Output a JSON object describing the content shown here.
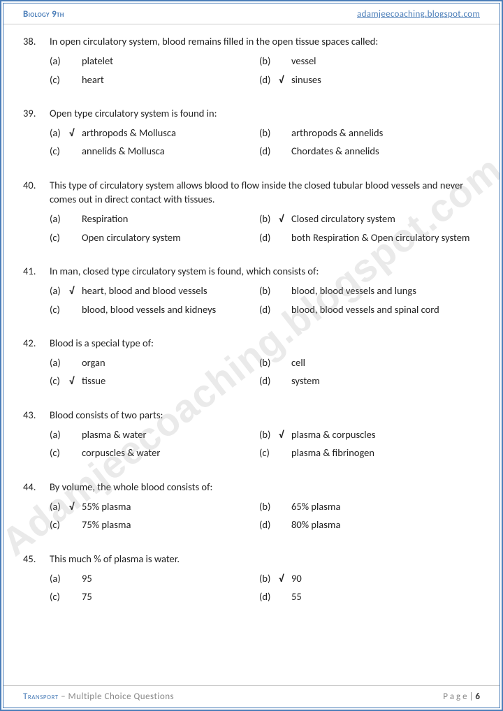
{
  "header": {
    "left": "Biology 9th",
    "right": "adamjeecoaching.blogspot.com"
  },
  "footer": {
    "title": "Transport",
    "subtitle": " – Multiple Choice Questions",
    "pageLabel": "P a g e  | ",
    "pageNum": "6"
  },
  "watermark": "Adamjeecoaching.blogspot.com",
  "colors": {
    "border": "#4a7db8",
    "text": "#222",
    "footerGray": "#888"
  },
  "questions": [
    {
      "num": "38.",
      "text": "In open circulatory system, blood remains filled in the open tissue spaces called:",
      "opts": [
        {
          "l": "(a)",
          "c": "",
          "t": "platelet"
        },
        {
          "l": "(b)",
          "c": "",
          "t": "vessel"
        },
        {
          "l": "(c)",
          "c": "",
          "t": "heart"
        },
        {
          "l": "(d)",
          "c": "√",
          "t": "sinuses"
        }
      ]
    },
    {
      "num": "39.",
      "text": "Open type circulatory system is found in:",
      "opts": [
        {
          "l": "(a)",
          "c": "√",
          "t": "arthropods & Mollusca"
        },
        {
          "l": "(b)",
          "c": "",
          "t": "arthropods & annelids"
        },
        {
          "l": "(c)",
          "c": "",
          "t": "annelids & Mollusca"
        },
        {
          "l": " (d)",
          "c": "",
          "t": "Chordates & annelids"
        }
      ]
    },
    {
      "num": "40.",
      "text": "This type of circulatory system allows blood to flow inside the closed tubular blood vessels and never comes out in direct contact with tissues.",
      "opts": [
        {
          "l": "(a)",
          "c": "",
          "t": "Respiration"
        },
        {
          "l": "(b)",
          "c": "√",
          "t": "Closed circulatory system"
        },
        {
          "l": "(c)",
          "c": "",
          "t": "Open circulatory system"
        },
        {
          "l": "(d)",
          "c": "",
          "t": "both Respiration & Open circulatory system"
        }
      ]
    },
    {
      "num": "41.",
      "text": "In man, closed type circulatory system is found, which consists of:",
      "opts": [
        {
          "l": "(a)",
          "c": "√",
          "t": "heart, blood and blood vessels"
        },
        {
          "l": "(b)",
          "c": "",
          "t": "blood, blood vessels and lungs"
        },
        {
          "l": "(c)",
          "c": "",
          "t": "blood, blood vessels and kidneys"
        },
        {
          "l": "(d)",
          "c": "",
          "t": "blood, blood vessels and spinal cord"
        }
      ]
    },
    {
      "num": "42.",
      "text": "Blood is a special type of:",
      "opts": [
        {
          "l": "(a)",
          "c": "",
          "t": "organ"
        },
        {
          "l": "(b)",
          "c": "",
          "t": "cell"
        },
        {
          "l": "(c)",
          "c": "√",
          "t": "tissue"
        },
        {
          "l": "(d)",
          "c": "",
          "t": "system"
        }
      ]
    },
    {
      "num": "43.",
      "text": "Blood consists of two parts:",
      "opts": [
        {
          "l": "(a)",
          "c": "",
          "t": "plasma & water"
        },
        {
          "l": "(b)",
          "c": "√",
          "t": "plasma & corpuscles"
        },
        {
          "l": "(c)",
          "c": "",
          "t": "corpuscles & water"
        },
        {
          "l": "(c)",
          "c": "",
          "t": "plasma & fibrinogen"
        }
      ]
    },
    {
      "num": "44.",
      "text": "By volume, the whole blood consists of:",
      "opts": [
        {
          "l": "(a)",
          "c": "√",
          "t": "55% plasma"
        },
        {
          "l": "(b)",
          "c": "",
          "t": "65% plasma"
        },
        {
          "l": "(c)",
          "c": "",
          "t": "75% plasma"
        },
        {
          "l": "(d)",
          "c": "",
          "t": "80% plasma"
        }
      ]
    },
    {
      "num": "45.",
      "text": "This much % of plasma is water.",
      "opts": [
        {
          "l": "(a)",
          "c": "",
          "t": "95"
        },
        {
          "l": "(b)",
          "c": "√",
          "t": "90"
        },
        {
          "l": "(c)",
          "c": "",
          "t": "75"
        },
        {
          "l": "(d)",
          "c": "",
          "t": "55"
        }
      ]
    }
  ]
}
